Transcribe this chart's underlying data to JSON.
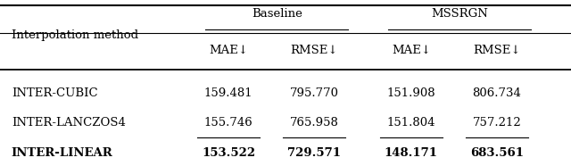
{
  "col_header_row1_labels": [
    "Baseline",
    "MSSRGN"
  ],
  "col_header_row2": [
    "MAE↓",
    "RMSE↓",
    "MAE↓",
    "RMSE↓"
  ],
  "method_label": "Interpolation method",
  "rows": [
    [
      "INTER-CUBIC",
      "159.481",
      "795.770",
      "151.908",
      "806.734"
    ],
    [
      "INTER-LANCZOS4",
      "155.746",
      "765.958",
      "151.804",
      "757.212"
    ],
    [
      "INTER-LINEAR",
      "153.522",
      "729.571",
      "148.171",
      "683.561"
    ]
  ],
  "underline_rows": [
    1
  ],
  "bold_rows": [
    2
  ],
  "background_color": "#ffffff",
  "text_color": "#000000",
  "font_size": 9.5
}
